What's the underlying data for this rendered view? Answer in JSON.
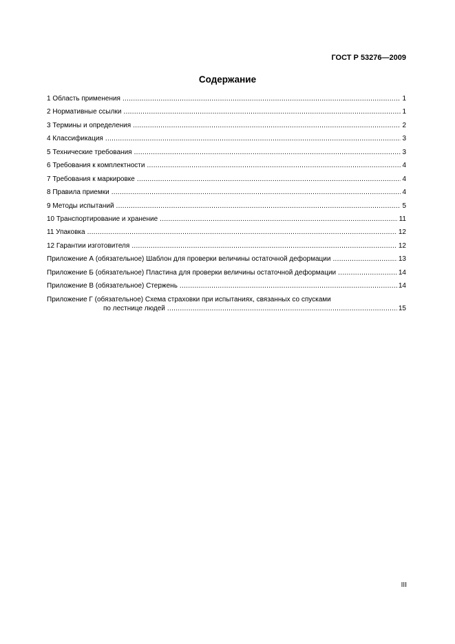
{
  "header": {
    "doc_number": "ГОСТ Р 53276—2009"
  },
  "title": "Содержание",
  "toc": [
    {
      "label": "1  Область применения",
      "page": "1"
    },
    {
      "label": "2  Нормативные ссылки",
      "page": "1"
    },
    {
      "label": "3  Термины и определения",
      "page": "2"
    },
    {
      "label": "4  Классификация",
      "page": "3"
    },
    {
      "label": "5  Технические требования",
      "page": "3"
    },
    {
      "label": "6  Требования к комплектности",
      "page": "4"
    },
    {
      "label": "7  Требования к маркировке",
      "page": "4"
    },
    {
      "label": "8  Правила приемки",
      "page": "4"
    },
    {
      "label": "9  Методы испытаний",
      "page": "5"
    },
    {
      "label": "10 Транспортирование и хранение",
      "page": "11"
    },
    {
      "label": "11 Упаковка",
      "page": "12"
    },
    {
      "label": "12 Гарантии изготовителя",
      "page": "12"
    },
    {
      "label": "Приложение А (обязательное) Шаблон для проверки величины остаточной деформации",
      "page": "13"
    },
    {
      "label": "Приложение Б (обязательное) Пластина для проверки величины остаточной деформации",
      "page": "14"
    },
    {
      "label": "Приложение В (обязательное) Стержень",
      "page": "14"
    }
  ],
  "toc_last": {
    "line1": "Приложение Г (обязательное) Схема страховки при испытаниях, связанных со спусками",
    "line2": "по лестнице людей",
    "page": "15"
  },
  "page_number": "III"
}
